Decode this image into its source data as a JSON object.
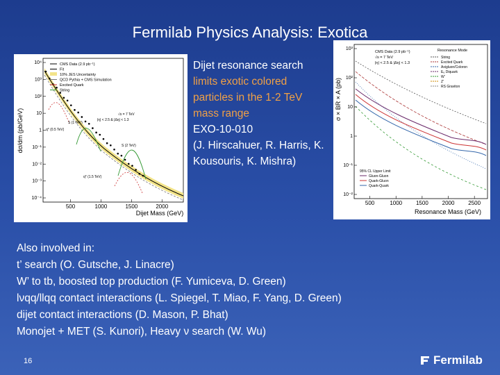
{
  "title": "Fermilab Physics Analysis: Exotica",
  "description": {
    "heading": "Dijet resonance search",
    "highlight": "limits exotic colored particles in the 1-2 TeV mass range",
    "analysis": "EXO-10-010",
    "authors": "(J. Hirscahuer, R. Harris, K. Kousouris, K. Mishra)"
  },
  "also_involved": {
    "heading": "Also involved in:",
    "items": [
      "t’ search (O. Gutsche, J. Linacre)",
      "W’ to tb, boosted top production (F. Yumiceva, D. Green)",
      "lνqq/llqq contact interactions (L. Spiegel, T. Miao, F. Yang, D. Green)",
      "dijet contact interactions (D. Mason, P. Bhat)",
      "Monojet + MET (S. Kunori), Heavy ν search (W. Wu)"
    ]
  },
  "page_number": "16",
  "logo": "Fermilab",
  "figures": [
    {
      "y_label": "dσ/dm (pb/GeV)",
      "x_label": "Dijet Mass (GeV)",
      "y_ticks": [
        "10⁴",
        "10³",
        "10²",
        "10",
        "1",
        "10⁻¹",
        "10⁻²",
        "10⁻³",
        "10⁻⁴"
      ],
      "x_ticks": [
        "500",
        "1000",
        "1500",
        "2000"
      ],
      "legend": [
        "CMS Data (2.9 pb⁻¹)",
        "Fit",
        "10% JES Uncertainty",
        "QCD Pythia + CMS Simulation",
        "Excited Quark",
        "String"
      ],
      "notes": [
        "√s = 7 TeV",
        "|η| < 2.5 & |Δη| < 1.3"
      ],
      "annotations": [
        "S (1 TeV)",
        "q* (0.5 TeV)",
        "S (2 TeV)",
        "q* (1.5 TeV)"
      ]
    },
    {
      "y_label": "σ × BR × A (pb)",
      "x_label": "Resonance Mass (GeV)",
      "y_ticks": [
        "10³",
        "10²",
        "10",
        "1",
        "10⁻¹",
        "10⁻²"
      ],
      "x_ticks": [
        "500",
        "1000",
        "1500",
        "2000",
        "2500"
      ],
      "legend_title": "Resonance Mode",
      "legend": [
        "String",
        "Excited Quark",
        "Axigluon/Coloron",
        "E₆ Diquark",
        "W'",
        "Z'",
        "RS Graviton"
      ],
      "notes": [
        "CMS Data (2.9 pb⁻¹)",
        "√s = 7 TeV",
        "|η| < 2.5 & |Δη| < 1.3"
      ],
      "limit_legend": [
        "95% CL Upper Limit",
        "Gluon-Gluon",
        "Quark-Gluon",
        "Quark-Quark"
      ]
    }
  ]
}
